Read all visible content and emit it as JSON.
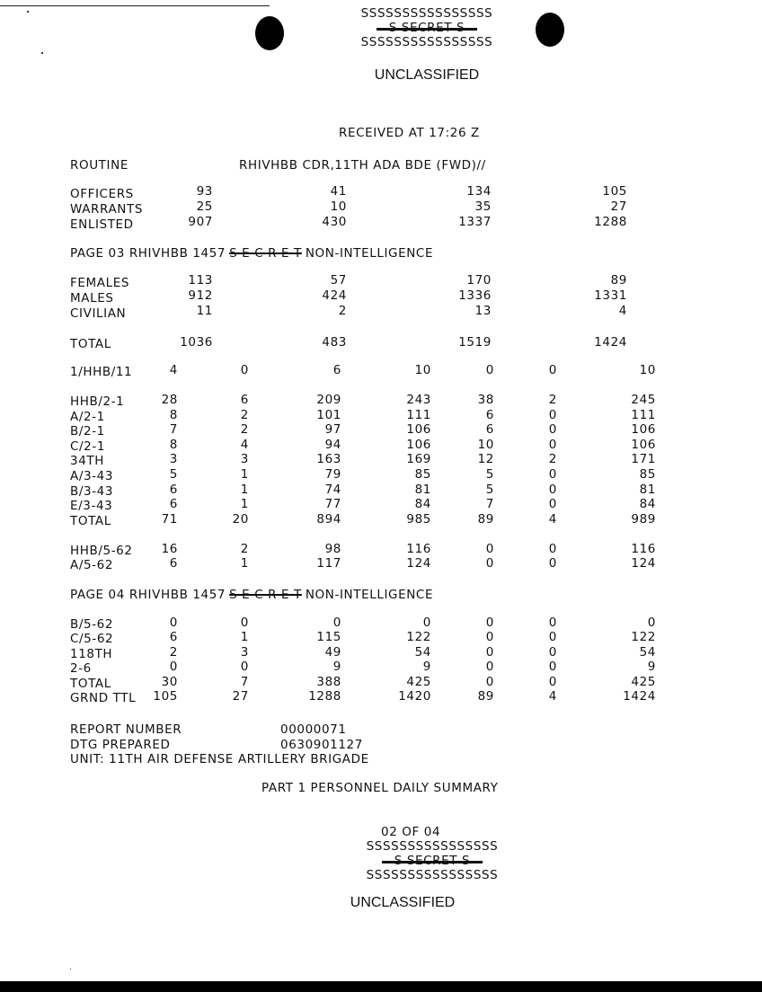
{
  "header": {
    "s_line_1": "SSSSSSSSSSSSSSSS",
    "secret": "S     SECRET     S",
    "s_line_2": "SSSSSSSSSSSSSSSS",
    "classification": "UNCLASSIFIED"
  },
  "received": "RECEIVED  AT  17:26  Z",
  "routine": {
    "label": "ROUTINE",
    "addressee": "RHIVHBB CDR,11TH ADA BDE (FWD)//"
  },
  "strength": [
    {
      "label": "OFFICERS",
      "values": [
        "93",
        "41",
        "134",
        "105"
      ]
    },
    {
      "label": "WARRANTS",
      "values": [
        "25",
        "10",
        "35",
        "27"
      ]
    },
    {
      "label": "ENLISTED",
      "values": [
        "907",
        "430",
        "1337",
        "1288"
      ]
    }
  ],
  "page03": {
    "prefix": "PAGE 03 RHIVHBB 1457",
    "struck": "S E C R E T",
    "suffix": "NON-INTELLIGENCE"
  },
  "gender": [
    {
      "label": "FEMALES",
      "values": [
        "113",
        "57",
        "170",
        "89"
      ]
    },
    {
      "label": "MALES",
      "values": [
        "912",
        "424",
        "1336",
        "1331"
      ]
    },
    {
      "label": "CIVILIAN",
      "values": [
        "11",
        "2",
        "13",
        "4"
      ]
    }
  ],
  "total_row": {
    "label": "TOTAL",
    "values": [
      "1036",
      "483",
      "1519",
      "1424"
    ]
  },
  "units_a": [
    {
      "label": "1/HHB/11",
      "values": [
        "4",
        "0",
        "6",
        "10",
        "0",
        "0",
        "10"
      ]
    }
  ],
  "units_b": [
    {
      "label": "HHB/2-1",
      "values": [
        "28",
        "6",
        "209",
        "243",
        "38",
        "2",
        "245"
      ]
    },
    {
      "label": "A/2-1",
      "values": [
        "8",
        "2",
        "101",
        "111",
        "6",
        "0",
        "111"
      ]
    },
    {
      "label": "B/2-1",
      "values": [
        "7",
        "2",
        "97",
        "106",
        "6",
        "0",
        "106"
      ]
    },
    {
      "label": "C/2-1",
      "values": [
        "8",
        "4",
        "94",
        "106",
        "10",
        "0",
        "106"
      ]
    },
    {
      "label": "34TH",
      "values": [
        "3",
        "3",
        "163",
        "169",
        "12",
        "2",
        "171"
      ]
    },
    {
      "label": "A/3-43",
      "values": [
        "5",
        "1",
        "79",
        "85",
        "5",
        "0",
        "85"
      ]
    },
    {
      "label": "B/3-43",
      "values": [
        "6",
        "1",
        "74",
        "81",
        "5",
        "0",
        "81"
      ]
    },
    {
      "label": "E/3-43",
      "values": [
        "6",
        "1",
        "77",
        "84",
        "7",
        "0",
        "84"
      ]
    },
    {
      "label": "TOTAL",
      "values": [
        "71",
        "20",
        "894",
        "985",
        "89",
        "4",
        "989"
      ]
    }
  ],
  "units_c": [
    {
      "label": "HHB/5-62",
      "values": [
        "16",
        "2",
        "98",
        "116",
        "0",
        "0",
        "116"
      ]
    },
    {
      "label": "A/5-62",
      "values": [
        "6",
        "1",
        "117",
        "124",
        "0",
        "0",
        "124"
      ]
    }
  ],
  "page04": {
    "prefix": "PAGE 04 RHIVHBB 1457",
    "struck": "S E C R E T",
    "suffix": "NON-INTELLIGENCE"
  },
  "units_d": [
    {
      "label": "B/5-62",
      "values": [
        "0",
        "0",
        "0",
        "0",
        "0",
        "0",
        "0"
      ]
    },
    {
      "label": "C/5-62",
      "values": [
        "6",
        "1",
        "115",
        "122",
        "0",
        "0",
        "122"
      ]
    },
    {
      "label": "118TH",
      "values": [
        "2",
        "3",
        "49",
        "54",
        "0",
        "0",
        "54"
      ]
    },
    {
      "label": "2-6",
      "values": [
        "0",
        "0",
        "9",
        "9",
        "0",
        "0",
        "9"
      ]
    },
    {
      "label": "TOTAL",
      "values": [
        "30",
        "7",
        "388",
        "425",
        "0",
        "0",
        "425"
      ]
    },
    {
      "label": "GRND TTL",
      "values": [
        "105",
        "27",
        "1288",
        "1420",
        "89",
        "4",
        "1424"
      ]
    }
  ],
  "report": {
    "report_number_label": "REPORT NUMBER",
    "report_number": "00000071",
    "dtg_label": "DTG PREPARED",
    "dtg": "0630901127",
    "unit": "UNIT:  11TH AIR DEFENSE ARTILLERY BRIGADE"
  },
  "part": "PART 1   PERSONNEL DAILY SUMMARY",
  "footer": {
    "page": "02 OF 04",
    "s_line_1": "SSSSSSSSSSSSSSSS",
    "secret": "S     SECRET     S",
    "s_line_2": "SSSSSSSSSSSSSSSS",
    "classification": "UNCLASSIFIED"
  }
}
